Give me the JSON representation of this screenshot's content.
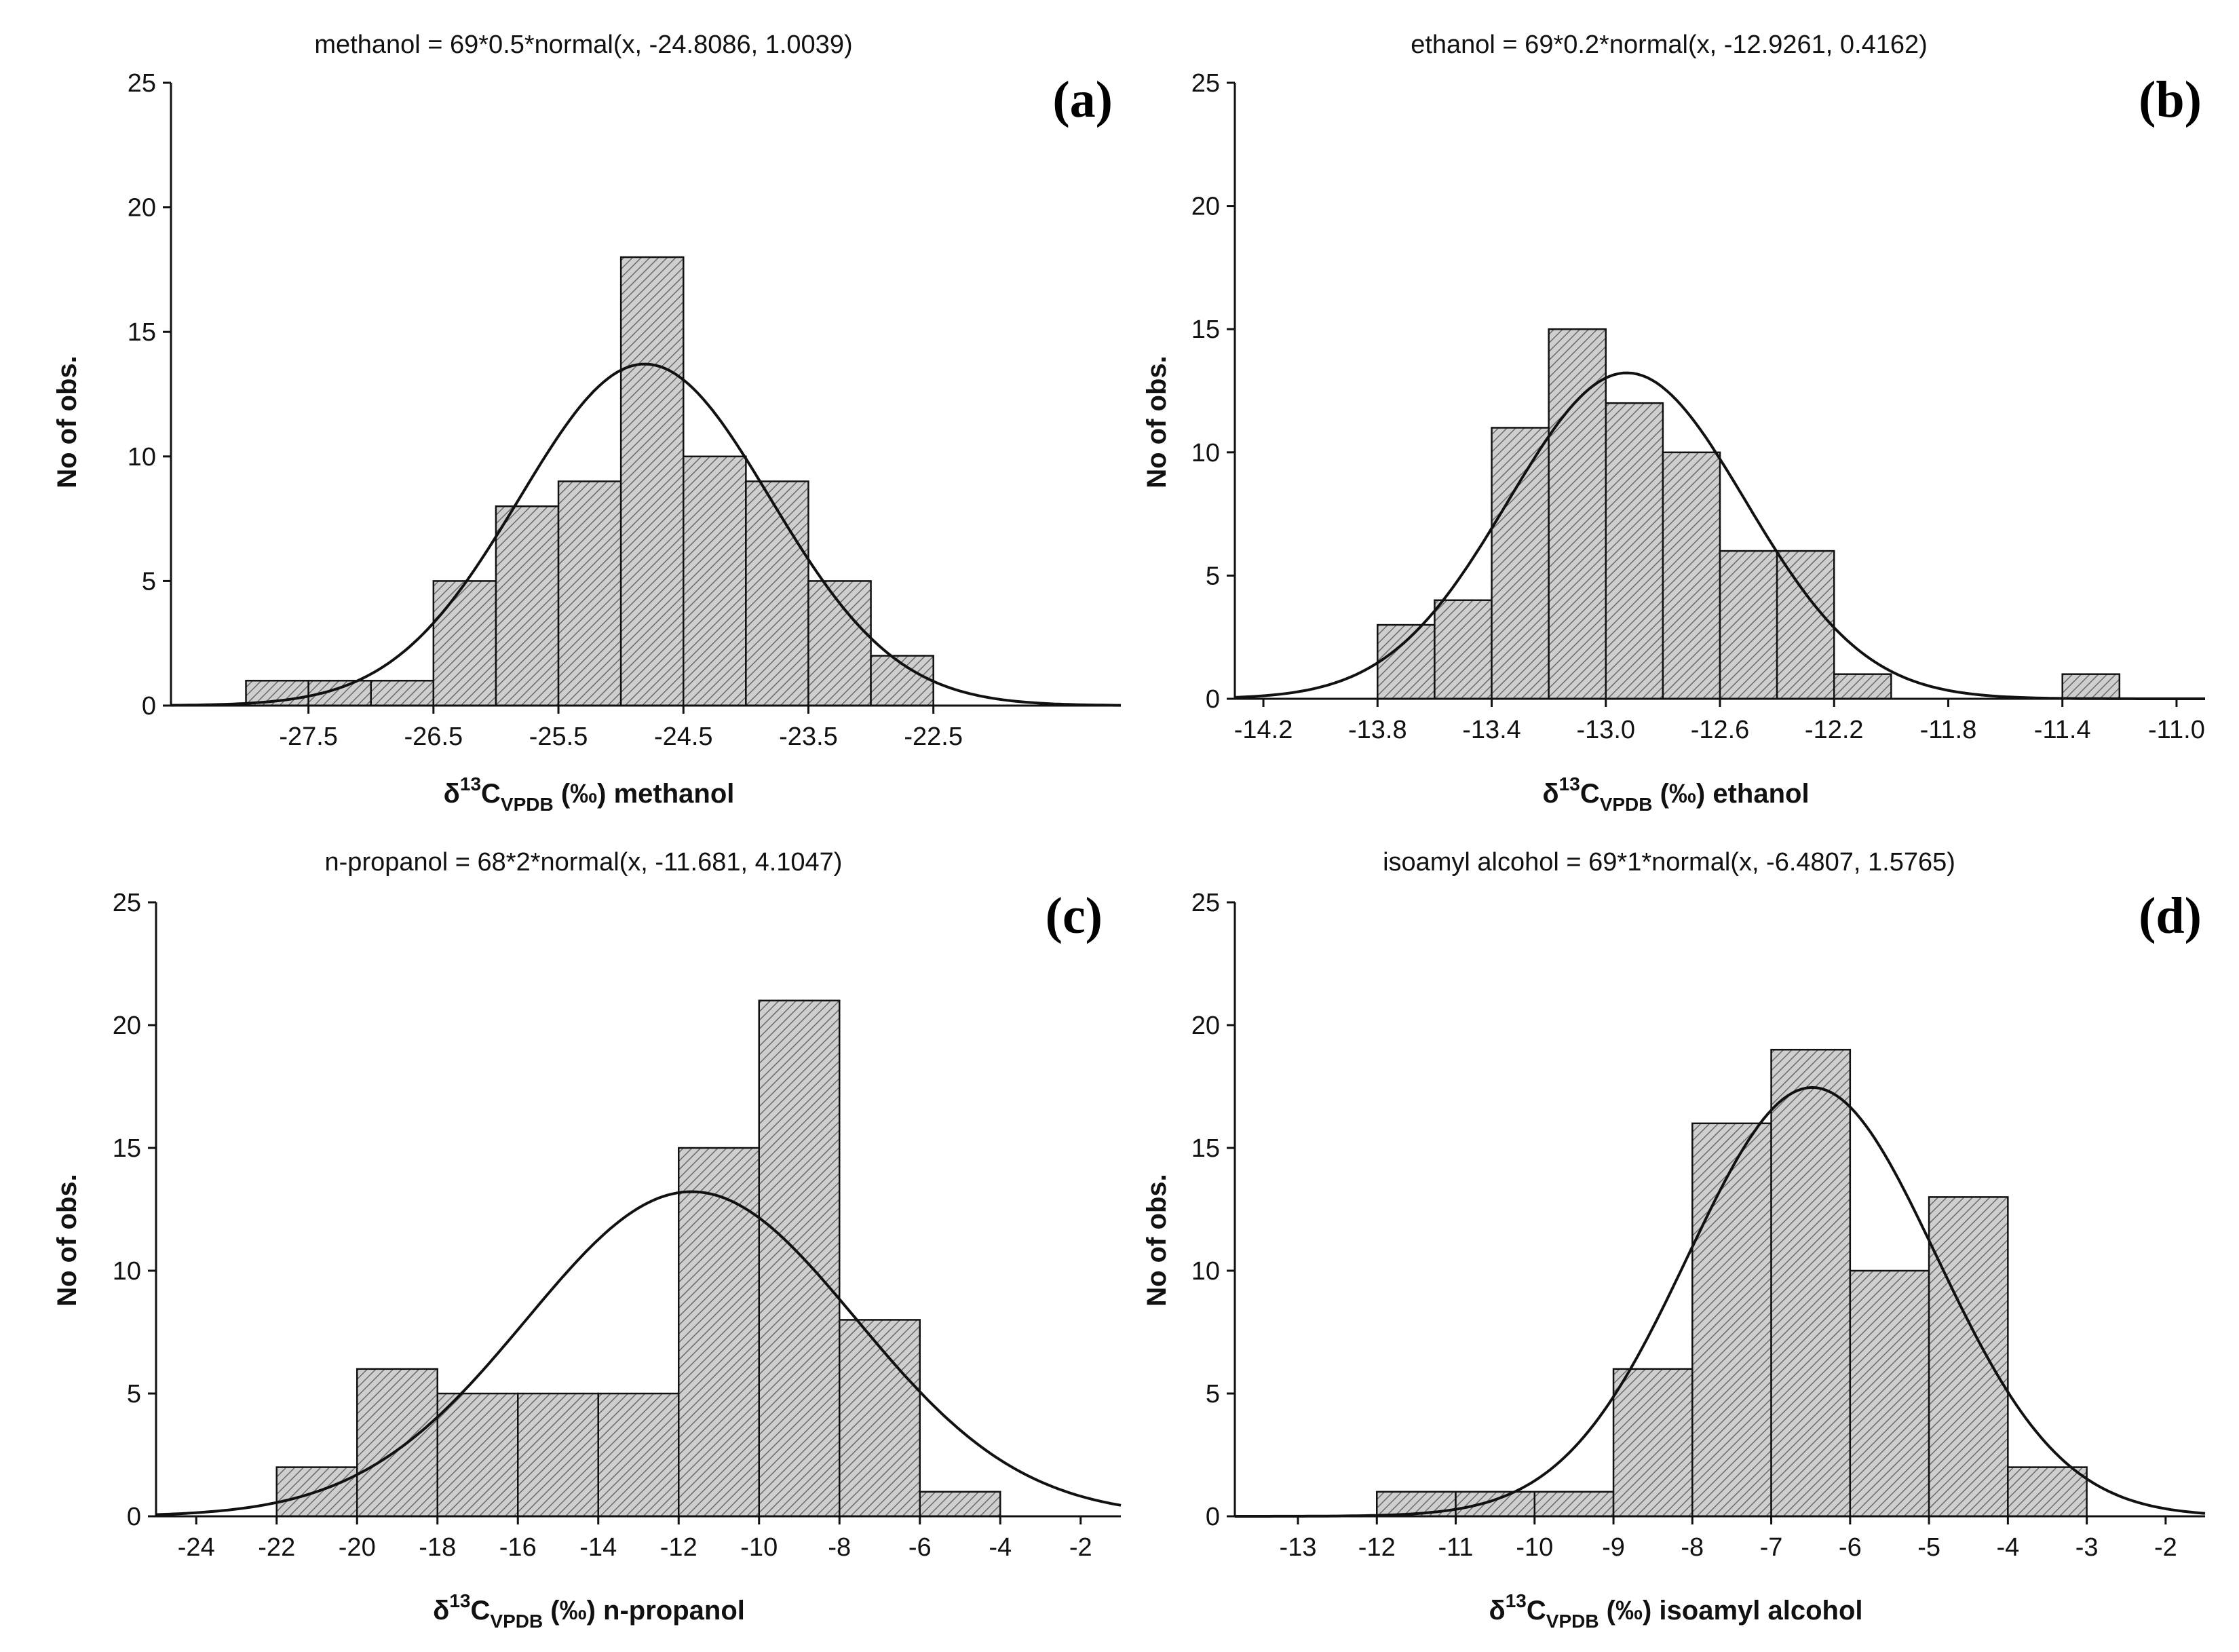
{
  "chart_data": [
    {
      "id": "a",
      "type": "bar",
      "panel_label": "(a)",
      "title": "methanol = 69*0.5*normal(x, -24.8086, 1.0039)",
      "ylabel": "No of obs.",
      "xlabel": {
        "delta": "δ",
        "sup": "13",
        "c": "C",
        "sub": "VPDB",
        "rest": " (‰) methanol"
      },
      "xlim": [
        -28.6,
        -21.0
      ],
      "ylim": [
        0,
        25
      ],
      "xticks": [
        -27.5,
        -26.5,
        -25.5,
        -24.5,
        -23.5,
        -22.5
      ],
      "xtick_labels": [
        "-27.5",
        "-26.5",
        "-25.5",
        "-24.5",
        "-23.5",
        "-22.5"
      ],
      "yticks": [
        0,
        5,
        10,
        15,
        20,
        25
      ],
      "bins": [
        {
          "x0": -28.0,
          "x1": -27.5,
          "count": 1
        },
        {
          "x0": -27.5,
          "x1": -27.0,
          "count": 1
        },
        {
          "x0": -27.0,
          "x1": -26.5,
          "count": 1
        },
        {
          "x0": -26.5,
          "x1": -26.0,
          "count": 5
        },
        {
          "x0": -26.0,
          "x1": -25.5,
          "count": 8
        },
        {
          "x0": -25.5,
          "x1": -25.0,
          "count": 9
        },
        {
          "x0": -25.0,
          "x1": -24.5,
          "count": 18
        },
        {
          "x0": -24.5,
          "x1": -24.0,
          "count": 10
        },
        {
          "x0": -24.0,
          "x1": -23.5,
          "count": 9
        },
        {
          "x0": -23.5,
          "x1": -23.0,
          "count": 5
        },
        {
          "x0": -23.0,
          "x1": -22.5,
          "count": 2
        }
      ],
      "fit": {
        "n": 69,
        "binwidth": 0.5,
        "mean": -24.8086,
        "sd": 1.0039
      }
    },
    {
      "id": "b",
      "type": "bar",
      "panel_label": "(b)",
      "title": "ethanol = 69*0.2*normal(x, -12.9261, 0.4162)",
      "ylabel": "No of obs.",
      "xlabel": {
        "delta": "δ",
        "sup": "13",
        "c": "C",
        "sub": "VPDB",
        "rest": " (‰) ethanol"
      },
      "xlim": [
        -14.3,
        -10.9
      ],
      "ylim": [
        0,
        25
      ],
      "xticks": [
        -14.2,
        -13.8,
        -13.4,
        -13.0,
        -12.6,
        -12.2,
        -11.8,
        -11.4,
        -11.0
      ],
      "xtick_labels": [
        "-14.2",
        "-13.8",
        "-13.4",
        "-13.0",
        "-12.6",
        "-12.2",
        "-11.8",
        "-11.4",
        "-11.0"
      ],
      "yticks": [
        0,
        5,
        10,
        15,
        20,
        25
      ],
      "bins": [
        {
          "x0": -13.8,
          "x1": -13.6,
          "count": 3
        },
        {
          "x0": -13.6,
          "x1": -13.4,
          "count": 4
        },
        {
          "x0": -13.4,
          "x1": -13.2,
          "count": 11
        },
        {
          "x0": -13.2,
          "x1": -13.0,
          "count": 15
        },
        {
          "x0": -13.0,
          "x1": -12.8,
          "count": 12
        },
        {
          "x0": -12.8,
          "x1": -12.6,
          "count": 10
        },
        {
          "x0": -12.6,
          "x1": -12.4,
          "count": 6
        },
        {
          "x0": -12.4,
          "x1": -12.2,
          "count": 6
        },
        {
          "x0": -12.2,
          "x1": -12.0,
          "count": 1
        },
        {
          "x0": -11.4,
          "x1": -11.2,
          "count": 1
        }
      ],
      "fit": {
        "n": 69,
        "binwidth": 0.2,
        "mean": -12.9261,
        "sd": 0.4162
      }
    },
    {
      "id": "c",
      "type": "bar",
      "panel_label": "(c)",
      "title": "n-propanol = 68*2*normal(x, -11.681, 4.1047)",
      "ylabel": "No of obs.",
      "xlabel": {
        "delta": "δ",
        "sup": "13",
        "c": "C",
        "sub": "VPDB",
        "rest": " (‰) n-propanol"
      },
      "xlim": [
        -25.0,
        -1.0
      ],
      "ylim": [
        0,
        25
      ],
      "xticks": [
        -24,
        -22,
        -20,
        -18,
        -16,
        -14,
        -12,
        -10,
        -8,
        -6,
        -4,
        -2
      ],
      "xtick_labels": [
        "-24",
        "-22",
        "-20",
        "-18",
        "-16",
        "-14",
        "-12",
        "-10",
        "-8",
        "-6",
        "-4",
        "-2"
      ],
      "yticks": [
        0,
        5,
        10,
        15,
        20,
        25
      ],
      "bins": [
        {
          "x0": -22,
          "x1": -20,
          "count": 2
        },
        {
          "x0": -20,
          "x1": -18,
          "count": 6
        },
        {
          "x0": -18,
          "x1": -16,
          "count": 5
        },
        {
          "x0": -16,
          "x1": -14,
          "count": 5
        },
        {
          "x0": -14,
          "x1": -12,
          "count": 5
        },
        {
          "x0": -12,
          "x1": -10,
          "count": 15
        },
        {
          "x0": -10,
          "x1": -8,
          "count": 21
        },
        {
          "x0": -8,
          "x1": -6,
          "count": 8
        },
        {
          "x0": -6,
          "x1": -4,
          "count": 1
        }
      ],
      "fit": {
        "n": 68,
        "binwidth": 2,
        "mean": -11.681,
        "sd": 4.1047
      }
    },
    {
      "id": "d",
      "type": "bar",
      "panel_label": "(d)",
      "title": "isoamyl alcohol = 69*1*normal(x, -6.4807, 1.5765)",
      "ylabel": "No of obs.",
      "xlabel": {
        "delta": "δ",
        "sup": "13",
        "c": "C",
        "sub": "VPDB",
        "rest": " (‰) isoamyl alcohol"
      },
      "xlim": [
        -13.8,
        -1.5
      ],
      "ylim": [
        0,
        25
      ],
      "xticks": [
        -13,
        -12,
        -11,
        -10,
        -9,
        -8,
        -7,
        -6,
        -5,
        -4,
        -3,
        -2
      ],
      "xtick_labels": [
        "-13",
        "-12",
        "-11",
        "-10",
        "-9",
        "-8",
        "-7",
        "-6",
        "-5",
        "-4",
        "-3",
        "-2"
      ],
      "yticks": [
        0,
        5,
        10,
        15,
        20,
        25
      ],
      "bins": [
        {
          "x0": -12,
          "x1": -11,
          "count": 1
        },
        {
          "x0": -11,
          "x1": -10,
          "count": 1
        },
        {
          "x0": -10,
          "x1": -9,
          "count": 1
        },
        {
          "x0": -9,
          "x1": -8,
          "count": 6
        },
        {
          "x0": -8,
          "x1": -7,
          "count": 16
        },
        {
          "x0": -7,
          "x1": -6,
          "count": 19
        },
        {
          "x0": -6,
          "x1": -5,
          "count": 10
        },
        {
          "x0": -5,
          "x1": -4,
          "count": 13
        },
        {
          "x0": -4,
          "x1": -3,
          "count": 2
        }
      ],
      "fit": {
        "n": 69,
        "binwidth": 1,
        "mean": -6.4807,
        "sd": 1.5765
      }
    }
  ]
}
